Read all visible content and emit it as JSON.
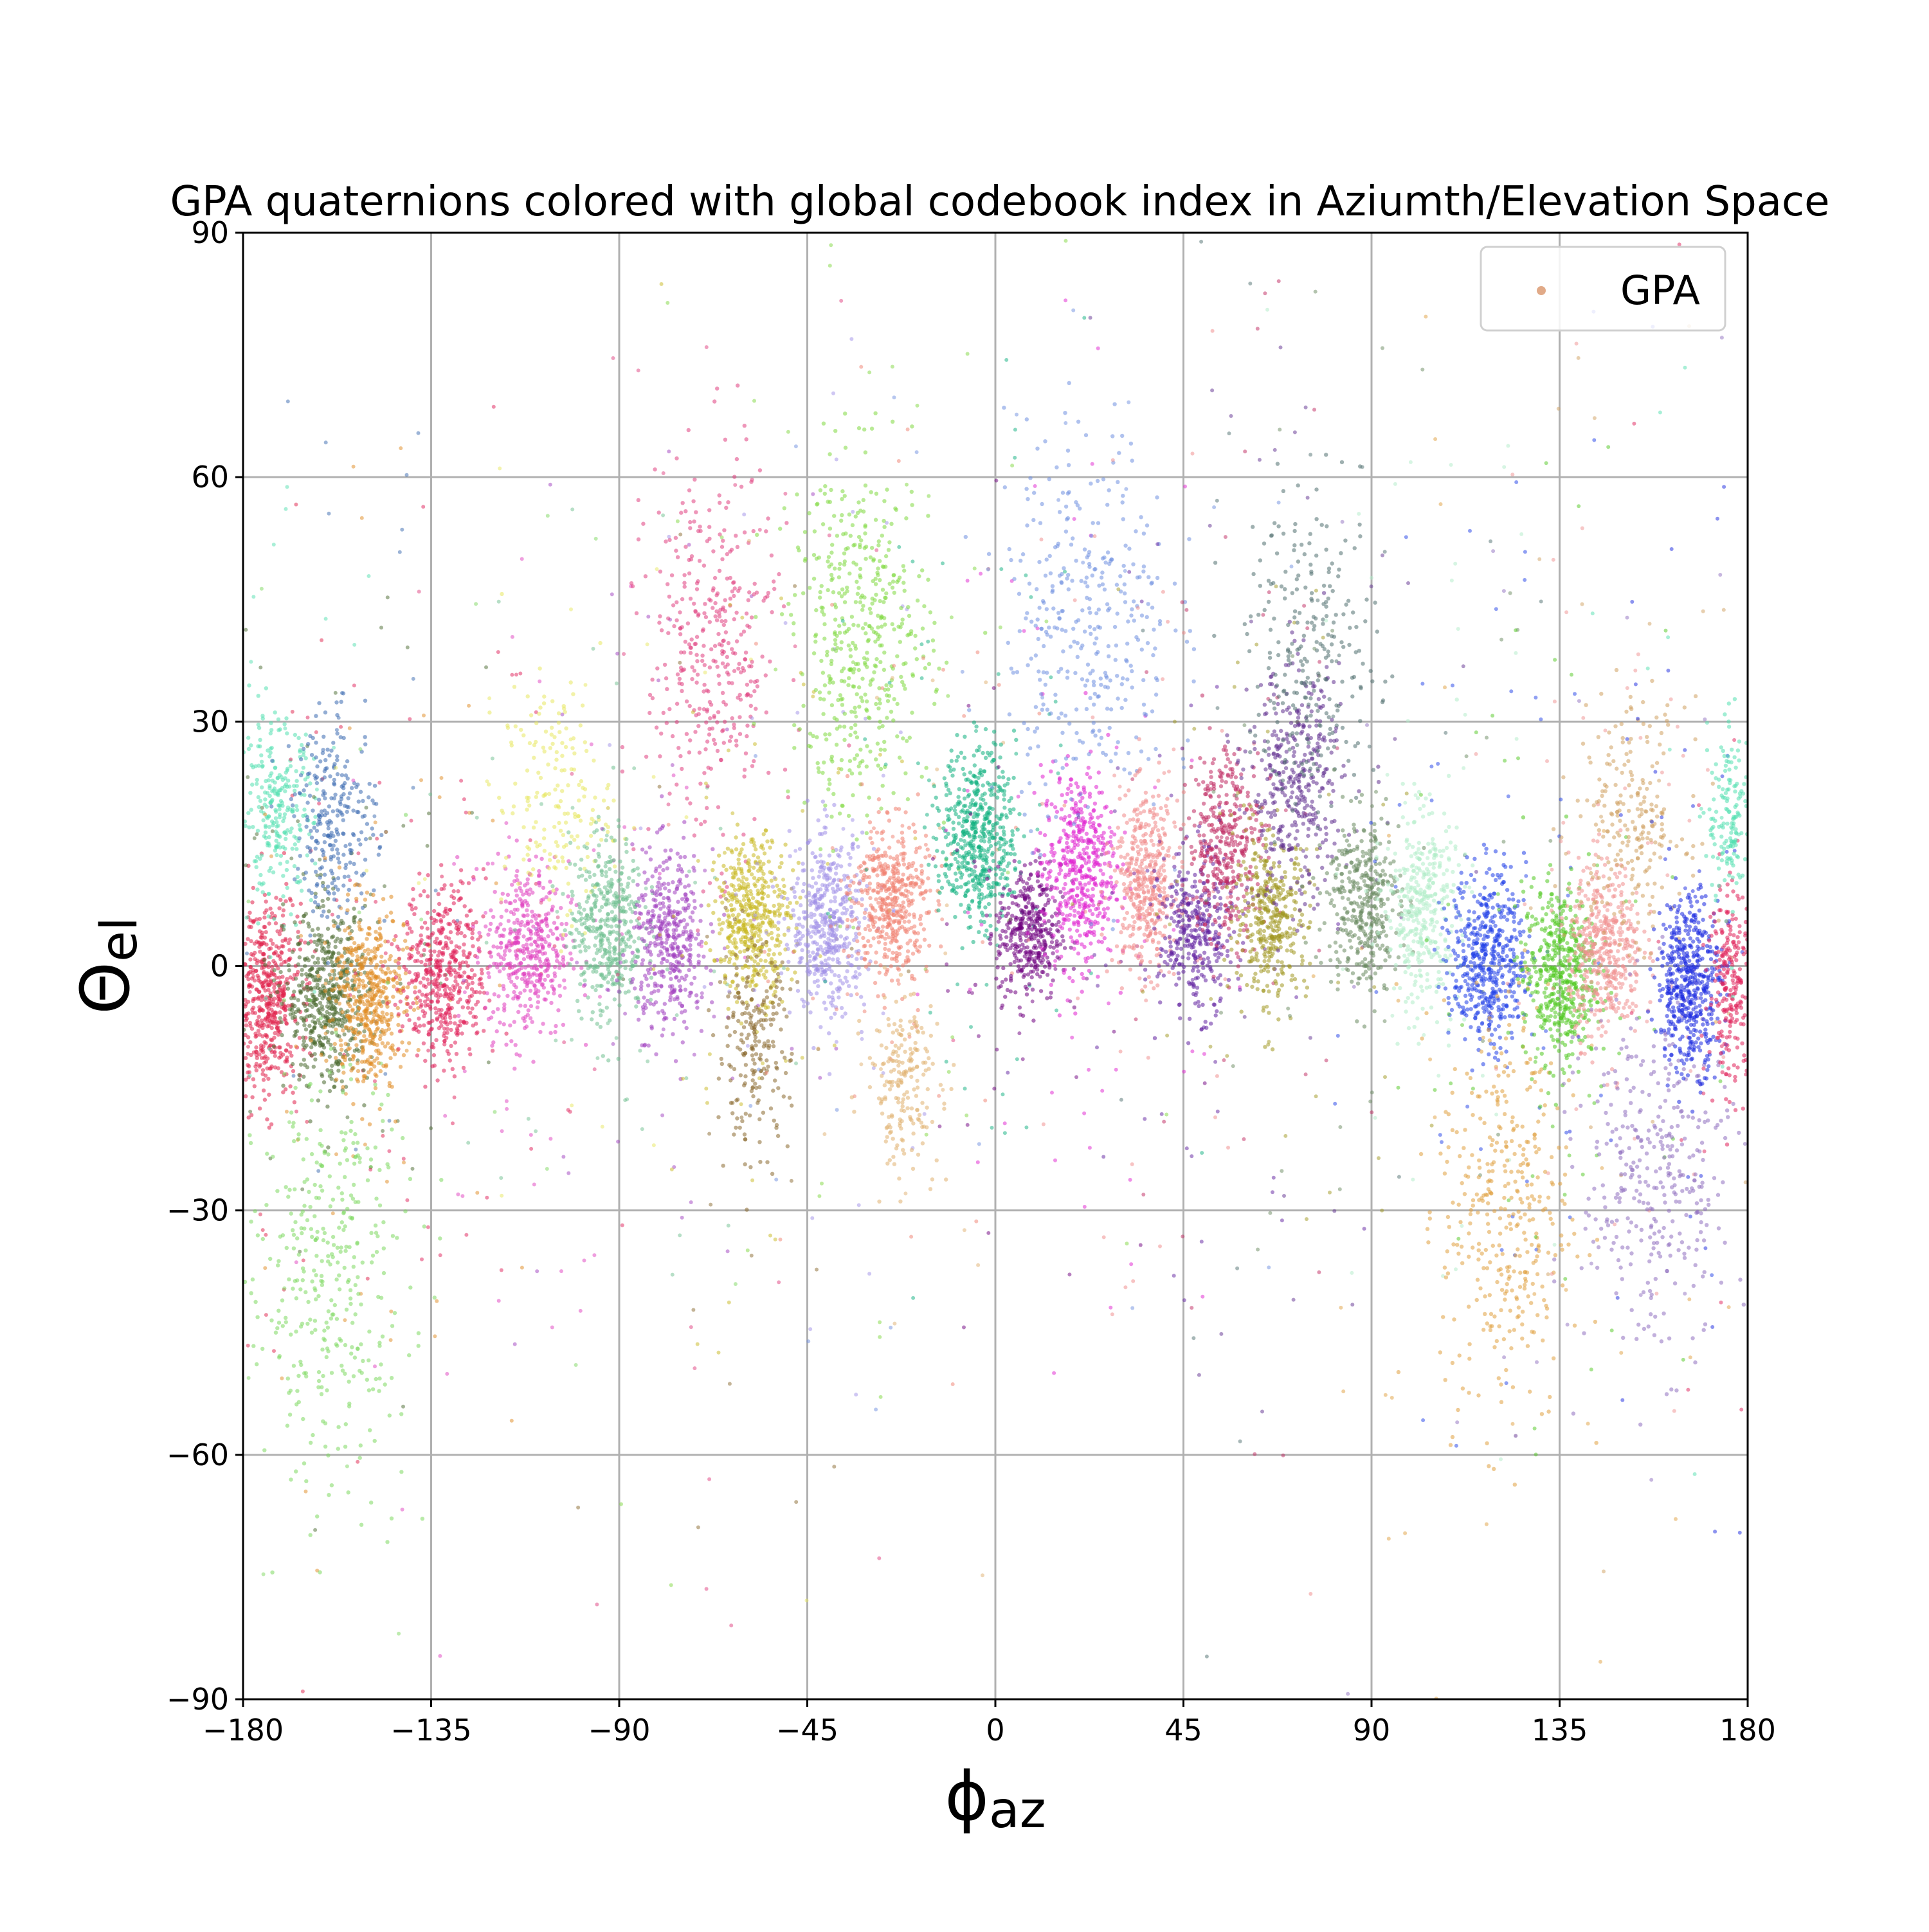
{
  "chart_data": {
    "type": "scatter",
    "title": "GPA quaternions colored with global codebook index in Aziumth/Elevation Space",
    "xlabel": {
      "symbol": "ϕ",
      "subscript": "az"
    },
    "ylabel": {
      "symbol": "Θ",
      "subscript": "el"
    },
    "xlim": [
      -180,
      180
    ],
    "ylim": [
      -90,
      90
    ],
    "xticks": [
      -180,
      -135,
      -90,
      -45,
      0,
      45,
      90,
      135,
      180
    ],
    "yticks": [
      -90,
      -60,
      -30,
      0,
      30,
      60,
      90
    ],
    "xtick_labels": [
      "−180",
      "−135",
      "−90",
      "−45",
      "0",
      "45",
      "90",
      "135",
      "180"
    ],
    "ytick_labels": [
      "−90",
      "−60",
      "−30",
      "0",
      "30",
      "60",
      "90"
    ],
    "grid": true,
    "legend": {
      "position": "top-right",
      "entries": [
        {
          "label": "GPA",
          "color": "#d9956a"
        }
      ]
    },
    "clusters": [
      {
        "az": -174,
        "el": -4,
        "w": 7,
        "h": 10,
        "color": "#e0204a",
        "n": 500
      },
      {
        "az": -172,
        "el": 19,
        "w": 8,
        "h": 9,
        "color": "#54e0b0",
        "n": 260
      },
      {
        "az": -160,
        "el": -4,
        "w": 9,
        "h": 9,
        "color": "#4a6a30",
        "n": 520
      },
      {
        "az": -158,
        "el": 18,
        "w": 9,
        "h": 10,
        "color": "#3a6ab0",
        "n": 260
      },
      {
        "az": -150,
        "el": -4,
        "w": 8,
        "h": 9,
        "color": "#e08a20",
        "n": 480
      },
      {
        "az": -160,
        "el": -38,
        "w": 18,
        "h": 22,
        "color": "#7ed860",
        "n": 380
      },
      {
        "az": -132,
        "el": -1,
        "w": 9,
        "h": 9,
        "color": "#e0205a",
        "n": 480
      },
      {
        "az": -112,
        "el": 2,
        "w": 9,
        "h": 9,
        "color": "#e040c0",
        "n": 440
      },
      {
        "az": -105,
        "el": 20,
        "w": 12,
        "h": 12,
        "color": "#e8e860",
        "n": 180
      },
      {
        "az": -93,
        "el": 5,
        "w": 8,
        "h": 9,
        "color": "#70c090",
        "n": 420
      },
      {
        "az": -78,
        "el": 3,
        "w": 8,
        "h": 9,
        "color": "#a040c0",
        "n": 420
      },
      {
        "az": -68,
        "el": 38,
        "w": 14,
        "h": 20,
        "color": "#e04080",
        "n": 380
      },
      {
        "az": -58,
        "el": 6,
        "w": 8,
        "h": 8,
        "color": "#c8b820",
        "n": 460
      },
      {
        "az": -58,
        "el": -10,
        "w": 8,
        "h": 10,
        "color": "#8a6a30",
        "n": 220
      },
      {
        "az": -40,
        "el": 5,
        "w": 8,
        "h": 9,
        "color": "#a090e8",
        "n": 460
      },
      {
        "az": -32,
        "el": 40,
        "w": 15,
        "h": 18,
        "color": "#80d840",
        "n": 480
      },
      {
        "az": -25,
        "el": 8,
        "w": 8,
        "h": 8,
        "color": "#f08070",
        "n": 460
      },
      {
        "az": -22,
        "el": -14,
        "w": 8,
        "h": 9,
        "color": "#e0b070",
        "n": 200
      },
      {
        "az": -4,
        "el": 16,
        "w": 8,
        "h": 9,
        "color": "#10b080",
        "n": 520
      },
      {
        "az": 8,
        "el": 4,
        "w": 7,
        "h": 7,
        "color": "#700080",
        "n": 380
      },
      {
        "az": 20,
        "el": 12,
        "w": 8,
        "h": 10,
        "color": "#e020d0",
        "n": 480
      },
      {
        "az": 22,
        "el": 42,
        "w": 18,
        "h": 20,
        "color": "#7090e0",
        "n": 360
      },
      {
        "az": 36,
        "el": 10,
        "w": 7,
        "h": 9,
        "color": "#f08888",
        "n": 420
      },
      {
        "az": 48,
        "el": 4,
        "w": 8,
        "h": 8,
        "color": "#6020a0",
        "n": 360
      },
      {
        "az": 55,
        "el": 15,
        "w": 8,
        "h": 10,
        "color": "#c02860",
        "n": 380
      },
      {
        "az": 66,
        "el": 6,
        "w": 8,
        "h": 8,
        "color": "#a09820",
        "n": 380
      },
      {
        "az": 72,
        "el": 22,
        "w": 10,
        "h": 12,
        "color": "#603090",
        "n": 380
      },
      {
        "az": 76,
        "el": 38,
        "w": 14,
        "h": 16,
        "color": "#507070",
        "n": 260
      },
      {
        "az": 88,
        "el": 8,
        "w": 8,
        "h": 9,
        "color": "#6a8a60",
        "n": 380
      },
      {
        "az": 102,
        "el": 7,
        "w": 8,
        "h": 10,
        "color": "#b0ecc8",
        "n": 380
      },
      {
        "az": 118,
        "el": 1,
        "w": 8,
        "h": 9,
        "color": "#2040e8",
        "n": 500
      },
      {
        "az": 122,
        "el": -30,
        "w": 14,
        "h": 22,
        "color": "#e0a040",
        "n": 380
      },
      {
        "az": 135,
        "el": -1,
        "w": 8,
        "h": 9,
        "color": "#50c820",
        "n": 500
      },
      {
        "az": 146,
        "el": 2,
        "w": 8,
        "h": 9,
        "color": "#f09090",
        "n": 440
      },
      {
        "az": 152,
        "el": 18,
        "w": 12,
        "h": 12,
        "color": "#d0a060",
        "n": 240
      },
      {
        "az": 158,
        "el": -26,
        "w": 16,
        "h": 18,
        "color": "#9070c0",
        "n": 360
      },
      {
        "az": 166,
        "el": -2,
        "w": 7,
        "h": 9,
        "color": "#1a28e0",
        "n": 500
      },
      {
        "az": 176,
        "el": -2,
        "w": 5,
        "h": 10,
        "color": "#e0205a",
        "n": 240
      },
      {
        "az": 176,
        "el": 18,
        "w": 5,
        "h": 9,
        "color": "#54e0b0",
        "n": 160
      }
    ]
  }
}
